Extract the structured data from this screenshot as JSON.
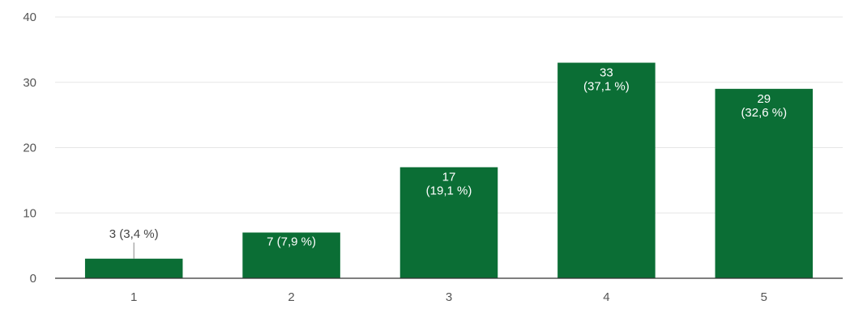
{
  "chart_data": {
    "type": "bar",
    "categories": [
      "1",
      "2",
      "3",
      "4",
      "5"
    ],
    "values": [
      3,
      7,
      17,
      33,
      29
    ],
    "data_labels": [
      [
        "3 (3,4 %)"
      ],
      [
        "7 (7,9 %)"
      ],
      [
        "17",
        "(19,1 %)"
      ],
      [
        "33",
        "(37,1 %)"
      ],
      [
        "29",
        "(32,6 %)"
      ]
    ],
    "label_inside": [
      false,
      true,
      true,
      true,
      true
    ],
    "yticks": [
      0,
      10,
      20,
      30,
      40
    ],
    "ylim": [
      0,
      40
    ],
    "grid": true,
    "bar_color": "#0b6e35",
    "title": "",
    "xlabel": "",
    "ylabel": ""
  }
}
